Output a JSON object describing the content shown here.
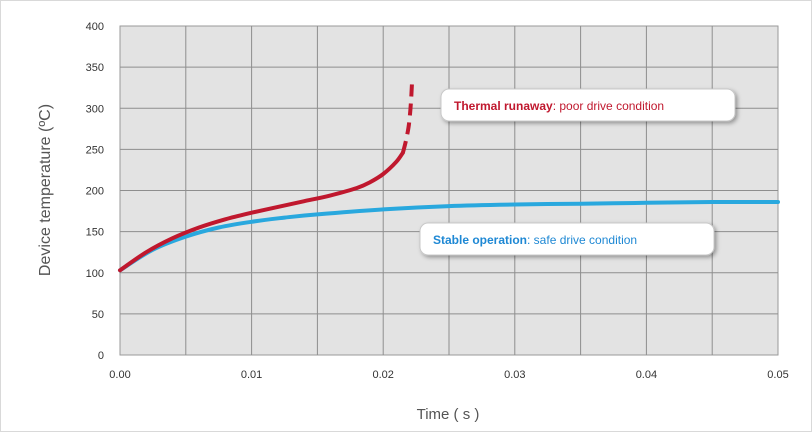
{
  "chart_data": {
    "type": "line",
    "xlabel": "Time ( s )",
    "ylabel": "Device temperature (ºC)",
    "xlim": [
      0,
      0.05
    ],
    "ylim": [
      0,
      400
    ],
    "x_ticks": [
      "0.00",
      "0.01",
      "0.02",
      "0.03",
      "0.04",
      "0.05"
    ],
    "y_ticks": [
      "0",
      "50",
      "100",
      "150",
      "200",
      "250",
      "300",
      "350",
      "400"
    ],
    "grid": true,
    "series": [
      {
        "color": "#c0182e",
        "x": [
          0,
          0.002,
          0.004,
          0.006,
          0.008,
          0.01,
          0.012,
          0.014,
          0.016,
          0.018,
          0.019,
          0.02,
          0.021,
          0.0215
        ],
        "y": [
          103,
          125,
          142,
          155,
          165,
          173,
          180,
          187,
          194,
          203,
          210,
          220,
          235,
          246
        ],
        "extension_dashed": {
          "x": [
            0.0215,
            0.02175,
            0.02195,
            0.0221,
            0.0222
          ],
          "y": [
            246,
            262,
            280,
            305,
            335
          ]
        }
      },
      {
        "color": "#29a8de",
        "x": [
          0,
          0.0025,
          0.005,
          0.0075,
          0.01,
          0.0125,
          0.015,
          0.02,
          0.025,
          0.03,
          0.035,
          0.04,
          0.045,
          0.05
        ],
        "y": [
          103,
          128,
          144,
          155,
          162,
          167,
          171,
          177,
          181,
          183,
          184,
          185,
          186,
          186
        ]
      }
    ],
    "annotations": [
      {
        "bold": "Thermal runaway",
        "rest": ": poor drive condition",
        "color": "#c0182e"
      },
      {
        "bold": "Stable operation",
        "rest": ": safe drive condition",
        "color": "#1e88d4"
      }
    ]
  }
}
